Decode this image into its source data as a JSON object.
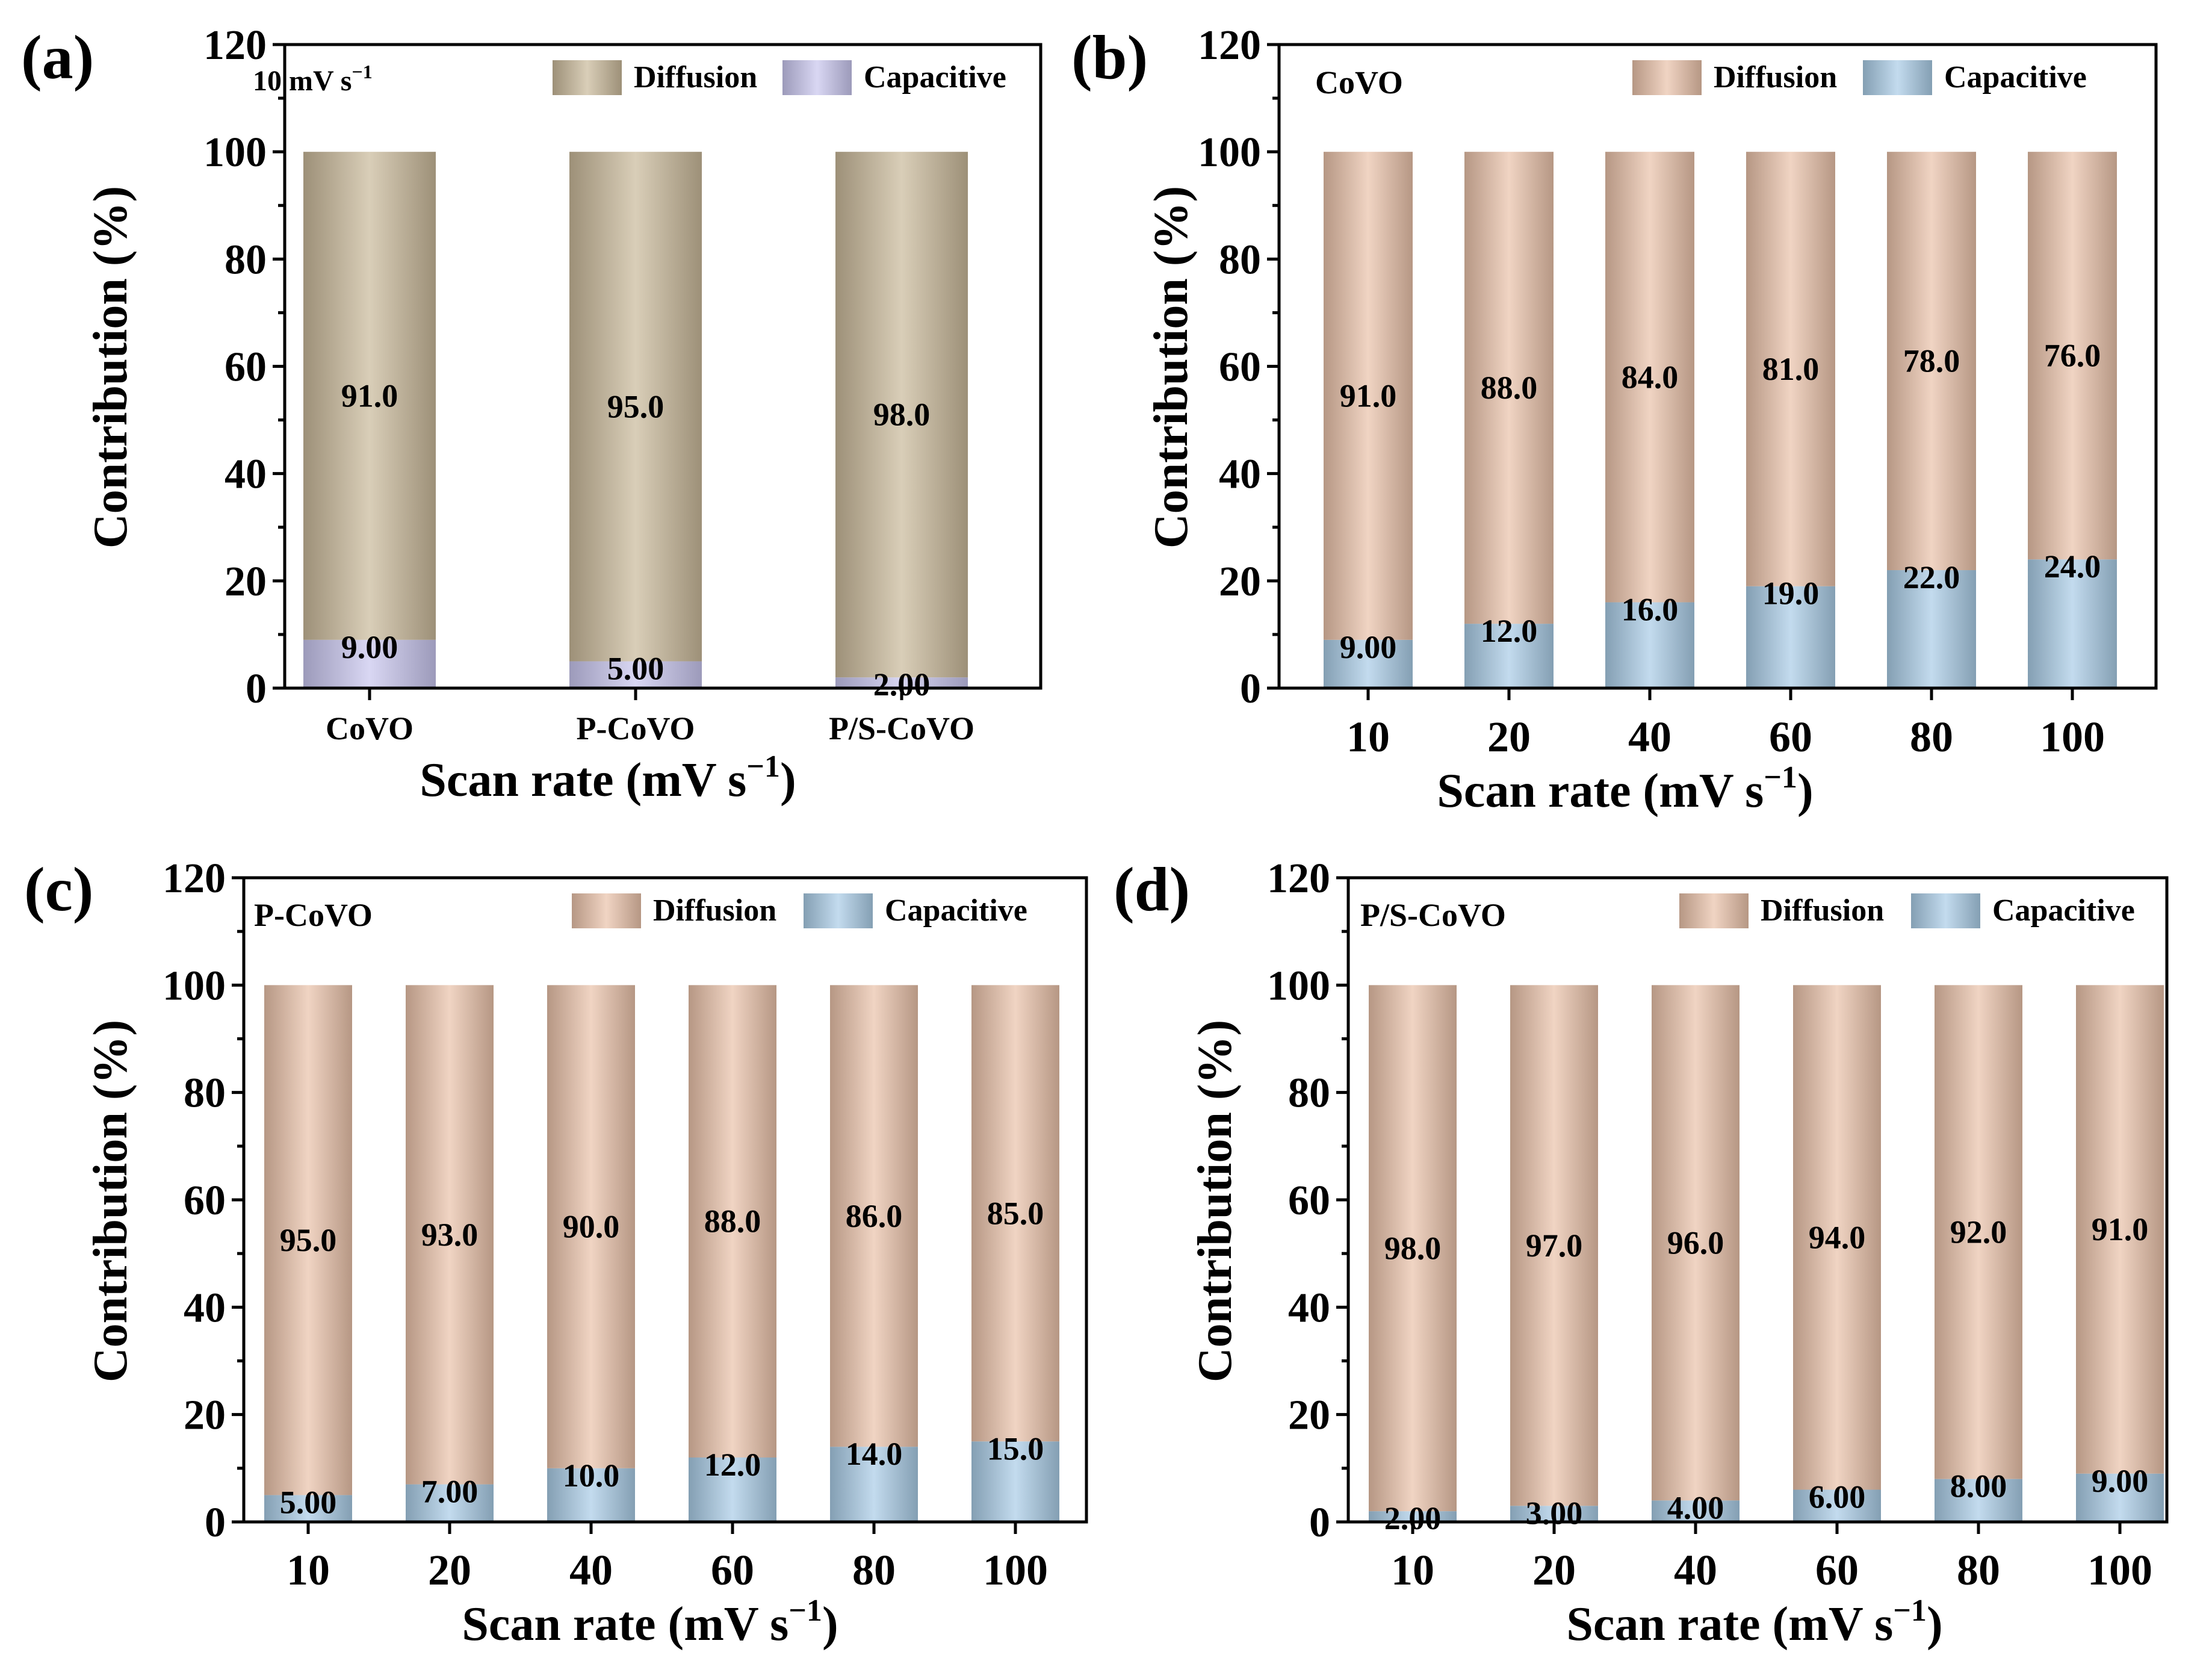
{
  "colors": {
    "diffusion_a": "#C9B99A",
    "capacitive_a": "#C8C6EE",
    "diffusion": "#E9C1A9",
    "capacitive": "#A9CCE6"
  },
  "chart_data": [
    {
      "type": "bar",
      "stacked": true,
      "panel_label": "(a)",
      "inset_label": "10 mV s",
      "inset_label_sup": "−1",
      "categories": [
        "CoVO",
        "P-CoVO",
        "P/S-CoVO"
      ],
      "series": [
        {
          "name": "Capacitive",
          "values": [
            9.0,
            5.0,
            2.0
          ],
          "labels": [
            "9.00",
            "5.00",
            "2.00"
          ]
        },
        {
          "name": "Diffusion",
          "values": [
            91.0,
            95.0,
            98.0
          ],
          "labels": [
            "91.0",
            "95.0",
            "98.0"
          ]
        }
      ],
      "xlabel": "Scan rate (mV s",
      "xlabel_sup": "−1",
      "xlabel_end": ")",
      "ylabel": "Contribution (%)",
      "ylim": [
        0,
        120
      ],
      "yticks": [
        "0",
        "20",
        "40",
        "60",
        "80",
        "100",
        "120"
      ],
      "legend": [
        "Diffusion",
        "Capacitive"
      ],
      "legend_position": "top-right"
    },
    {
      "type": "bar",
      "stacked": true,
      "panel_label": "(b)",
      "inset_label": "CoVO",
      "categories": [
        "10",
        "20",
        "40",
        "60",
        "80",
        "100"
      ],
      "series": [
        {
          "name": "Capacitive",
          "values": [
            9.0,
            12.0,
            16.0,
            19.0,
            22.0,
            24.0
          ],
          "labels": [
            "9.00",
            "12.0",
            "16.0",
            "19.0",
            "22.0",
            "24.0"
          ]
        },
        {
          "name": "Diffusion",
          "values": [
            91.0,
            88.0,
            84.0,
            81.0,
            78.0,
            76.0
          ],
          "labels": [
            "91.0",
            "88.0",
            "84.0",
            "81.0",
            "78.0",
            "76.0"
          ]
        }
      ],
      "xlabel": "Scan rate (mV s",
      "xlabel_sup": "−1",
      "xlabel_end": ")",
      "ylabel": "Contribution (%)",
      "ylim": [
        0,
        120
      ],
      "yticks": [
        "0",
        "20",
        "40",
        "60",
        "80",
        "100",
        "120"
      ],
      "legend": [
        "Diffusion",
        "Capacitive"
      ],
      "legend_position": "top-right"
    },
    {
      "type": "bar",
      "stacked": true,
      "panel_label": "(c)",
      "inset_label": "P-CoVO",
      "categories": [
        "10",
        "20",
        "40",
        "60",
        "80",
        "100"
      ],
      "series": [
        {
          "name": "Capacitive",
          "values": [
            5.0,
            7.0,
            10.0,
            12.0,
            14.0,
            15.0
          ],
          "labels": [
            "5.00",
            "7.00",
            "10.0",
            "12.0",
            "14.0",
            "15.0"
          ]
        },
        {
          "name": "Diffusion",
          "values": [
            95.0,
            93.0,
            90.0,
            88.0,
            86.0,
            85.0
          ],
          "labels": [
            "95.0",
            "93.0",
            "90.0",
            "88.0",
            "86.0",
            "85.0"
          ]
        }
      ],
      "xlabel": "Scan rate (mV s",
      "xlabel_sup": "−1",
      "xlabel_end": ")",
      "ylabel": "Contribution (%)",
      "ylim": [
        0,
        120
      ],
      "yticks": [
        "0",
        "20",
        "40",
        "60",
        "80",
        "100",
        "120"
      ],
      "legend": [
        "Diffusion",
        "Capacitive"
      ],
      "legend_position": "top-right"
    },
    {
      "type": "bar",
      "stacked": true,
      "panel_label": "(d)",
      "inset_label": "P/S-CoVO",
      "categories": [
        "10",
        "20",
        "40",
        "60",
        "80",
        "100"
      ],
      "series": [
        {
          "name": "Capacitive",
          "values": [
            2.0,
            3.0,
            4.0,
            6.0,
            8.0,
            9.0
          ],
          "labels": [
            "2.00",
            "3.00",
            "4.00",
            "6.00",
            "8.00",
            "9.00"
          ]
        },
        {
          "name": "Diffusion",
          "values": [
            98.0,
            97.0,
            96.0,
            94.0,
            92.0,
            91.0
          ],
          "labels": [
            "98.0",
            "97.0",
            "96.0",
            "94.0",
            "92.0",
            "91.0"
          ]
        }
      ],
      "xlabel": "Scan rate (mV s",
      "xlabel_sup": "−1",
      "xlabel_end": ")",
      "ylabel": "Contribution (%)",
      "ylim": [
        0,
        120
      ],
      "yticks": [
        "0",
        "20",
        "40",
        "60",
        "80",
        "100",
        "120"
      ],
      "legend": [
        "Diffusion",
        "Capacitive"
      ],
      "legend_position": "top-right"
    }
  ]
}
